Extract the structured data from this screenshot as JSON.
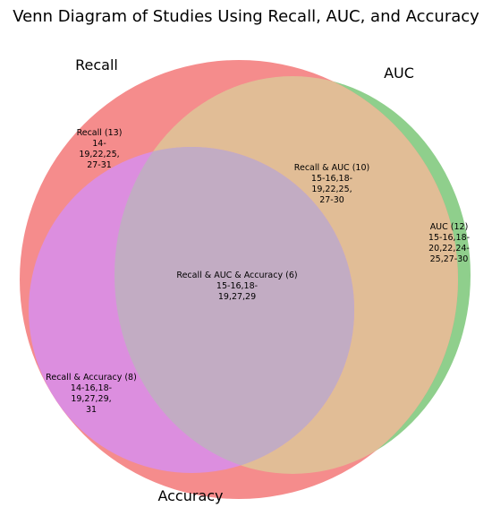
{
  "title": "Venn Diagram of Studies Using Recall, AUC, and Accuracy",
  "sets": {
    "recall": {
      "label": "Recall",
      "color": "#f58c8c"
    },
    "auc": {
      "label": "AUC",
      "color": "#8fcf8c"
    },
    "accuracy": {
      "label": "Accuracy",
      "color": "#d98ee0"
    }
  },
  "overlap_colors": {
    "recall_auc": "#e1bd96",
    "recall_accuracy": "#dc8edf",
    "all_three": "#c2acc3"
  },
  "regions": {
    "recall_only": [
      "Recall (13)",
      "14-",
      "19,22,25,",
      "27-31"
    ],
    "recall_auc": [
      "Recall & AUC (10)",
      "15-16,18-",
      "19,22,25,",
      "27-30"
    ],
    "auc_only": [
      "AUC (12)",
      "15-16,18-",
      "20,22,24-",
      "25,27-30"
    ],
    "all_three": [
      "Recall & AUC & Accuracy (6)",
      "15-16,18-",
      "19,27,29"
    ],
    "recall_accuracy": [
      "Recall & Accuracy (8)",
      "14-16,18-",
      "19,27,29,",
      "31"
    ]
  }
}
